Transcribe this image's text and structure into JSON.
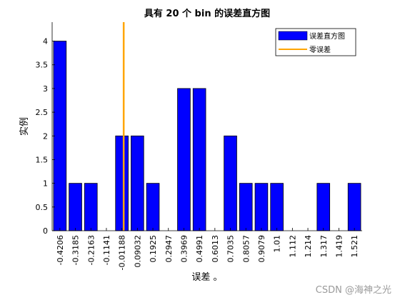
{
  "chart_data": {
    "type": "bar",
    "title": "具有 20 个 bin 的误差直方图",
    "xlabel": "误差 。",
    "ylabel": "实例",
    "categories": [
      "-0.4206",
      "-0.3185",
      "-0.2163",
      "-0.1141",
      "-0.01188",
      "0.09032",
      "0.1925",
      "0.2947",
      "0.3969",
      "0.4991",
      "0.6013",
      "0.7035",
      "0.8057",
      "0.9079",
      "1.01",
      "1.112",
      "1.214",
      "1.317",
      "1.419",
      "1.521"
    ],
    "series": [
      {
        "name": "误差直方图",
        "values": [
          4,
          1,
          1,
          0,
          2,
          2,
          1,
          0,
          3,
          3,
          0,
          2,
          1,
          1,
          1,
          0,
          0,
          1,
          0,
          1
        ]
      }
    ],
    "zero_error": {
      "name": "零误差",
      "category": "-0.01188",
      "offset": 0.116
    },
    "ylim": [
      0,
      4.4
    ],
    "yticks": [
      "0",
      "0.5",
      "1",
      "1.5",
      "2",
      "2.5",
      "3",
      "3.5",
      "4"
    ],
    "legend": "top-right",
    "grid": false,
    "colors": {
      "bar": "#0000ff",
      "bar_edge": "#000000",
      "zero_line": "#ffa500",
      "axis": "#000000"
    }
  },
  "watermark": "CSDN @海神之光"
}
